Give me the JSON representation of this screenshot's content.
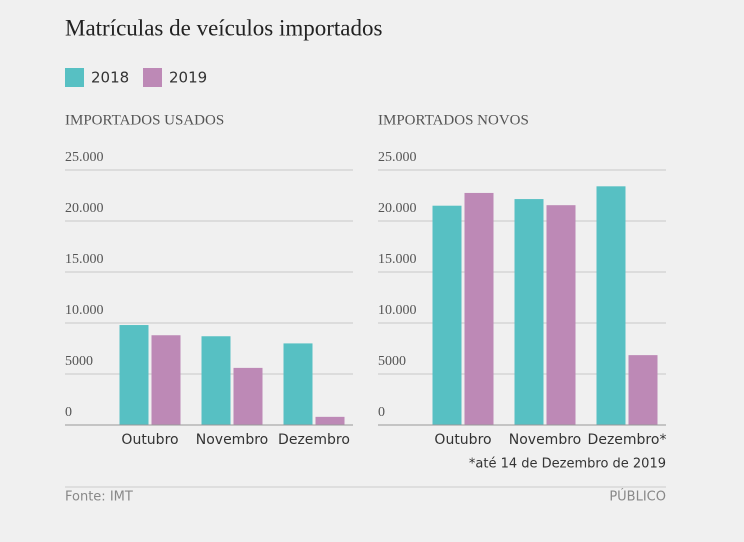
{
  "title": "Matrículas de veículos importados",
  "note": "*até 14 de Dezembro de 2019",
  "source": "Fonte: IMT",
  "brand": "PÚBLICO",
  "chart_data": [
    {
      "type": "bar",
      "title": "IMPORTADOS USADOS",
      "categories": [
        "Outubro",
        "Novembro",
        "Dezembro"
      ],
      "series": [
        {
          "name": "2018",
          "color": "#57c0c3",
          "values": [
            9800,
            8700,
            8000
          ]
        },
        {
          "name": "2019",
          "color": "#bd89b6",
          "values": [
            8800,
            5600,
            800
          ]
        }
      ],
      "ylim": [
        0,
        25000
      ],
      "yticks": [
        0,
        5000,
        {
          "value": 10000,
          "label": "10.000"
        },
        {
          "value": 15000,
          "label": "15.000"
        },
        {
          "value": 20000,
          "label": "20.000"
        },
        {
          "value": 25000,
          "label": "25.000"
        }
      ],
      "grid": true
    },
    {
      "type": "bar",
      "title": "IMPORTADOS NOVOS",
      "categories": [
        "Outubro",
        "Novembro",
        "Dezembro*"
      ],
      "series": [
        {
          "name": "2018",
          "color": "#57c0c3",
          "values": [
            21500,
            22150,
            23400
          ]
        },
        {
          "name": "2019",
          "color": "#bd89b6",
          "values": [
            22750,
            21550,
            6850
          ]
        }
      ],
      "ylim": [
        0,
        25000
      ],
      "yticks": [
        0,
        5000,
        {
          "value": 10000,
          "label": "10.000"
        },
        {
          "value": 15000,
          "label": "15.000"
        },
        {
          "value": 20000,
          "label": "20.000"
        },
        {
          "value": 25000,
          "label": "25.000"
        }
      ],
      "grid": true
    }
  ]
}
